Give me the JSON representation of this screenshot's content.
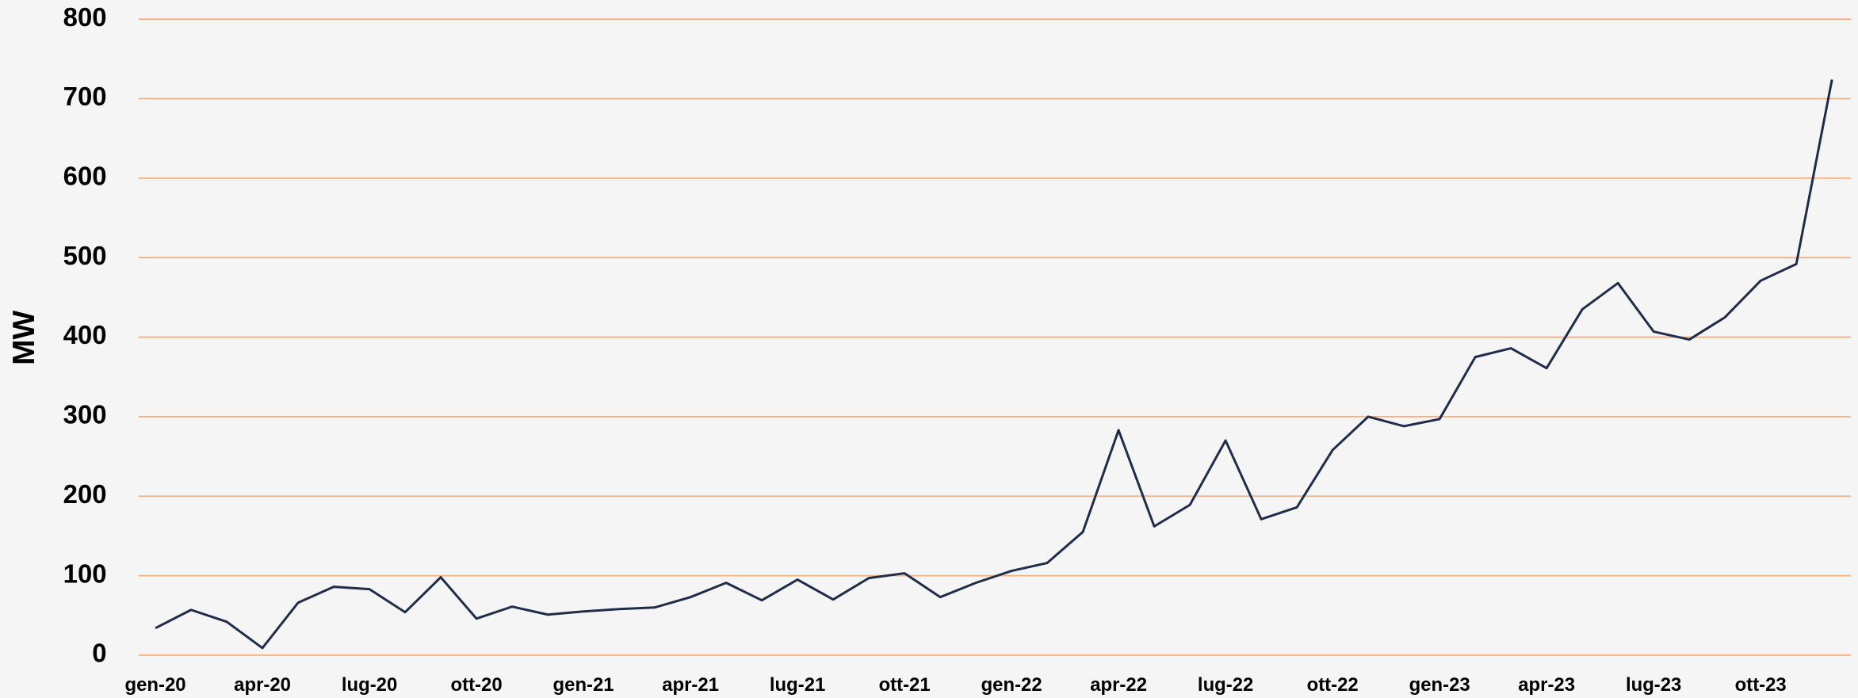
{
  "chart_data": {
    "type": "line",
    "y_label": "MW",
    "categories": [
      "gen-20",
      null,
      null,
      "apr-20",
      null,
      null,
      "lug-20",
      null,
      null,
      "ott-20",
      null,
      null,
      "gen-21",
      null,
      null,
      "apr-21",
      null,
      null,
      "lug-21",
      null,
      null,
      "ott-21",
      null,
      null,
      "gen-22",
      null,
      null,
      "apr-22",
      null,
      null,
      "lug-22",
      null,
      null,
      "ott-22",
      null,
      null,
      "gen-23",
      null,
      null,
      "apr-23",
      null,
      null,
      "lug-23",
      null,
      null,
      "ott-23",
      null,
      null
    ],
    "series": [
      {
        "name": "MW",
        "color": "#1f2d4a",
        "values": [
          34,
          57,
          42,
          9,
          66,
          86,
          83,
          54,
          98,
          46,
          61,
          51,
          55,
          58,
          60,
          73,
          91,
          69,
          95,
          70,
          97,
          103,
          73,
          91,
          106,
          116,
          155,
          283,
          162,
          189,
          270,
          171,
          186,
          258,
          300,
          288,
          297,
          375,
          386,
          361,
          435,
          468,
          407,
          397,
          425,
          471,
          492,
          724
        ]
      }
    ],
    "ylim": [
      0,
      800
    ],
    "yticks": [
      0,
      100,
      200,
      300,
      400,
      500,
      600,
      700,
      800
    ],
    "grid": true,
    "grid_color": "#f4b183"
  }
}
